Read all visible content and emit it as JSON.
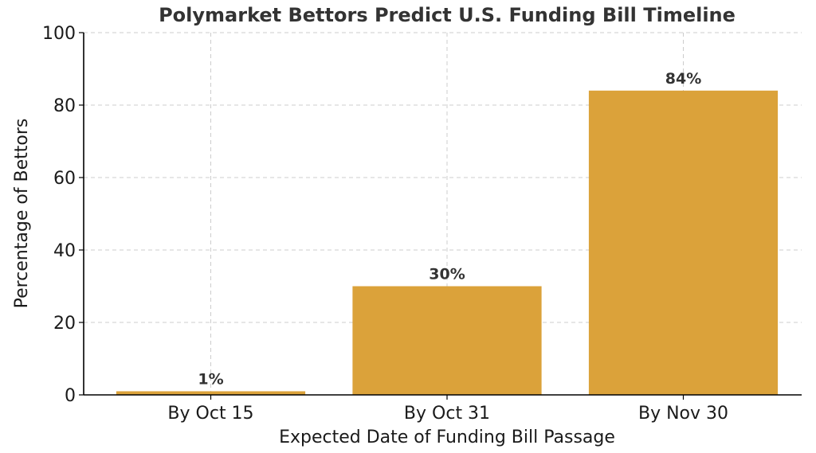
{
  "chart_data": {
    "type": "bar",
    "title": "Polymarket Bettors Predict U.S. Funding Bill Timeline",
    "xlabel": "Expected Date of Funding Bill Passage",
    "ylabel": "Percentage of Bettors",
    "categories": [
      "By Oct 15",
      "By Oct 31",
      "By Nov 30"
    ],
    "values": [
      1,
      30,
      84
    ],
    "data_labels": [
      "1%",
      "30%",
      "84%"
    ],
    "ylim": [
      0,
      100
    ],
    "yticks": [
      0,
      20,
      40,
      60,
      80,
      100
    ],
    "grid": true,
    "bar_color": "#DBA23A",
    "legend": "none"
  }
}
